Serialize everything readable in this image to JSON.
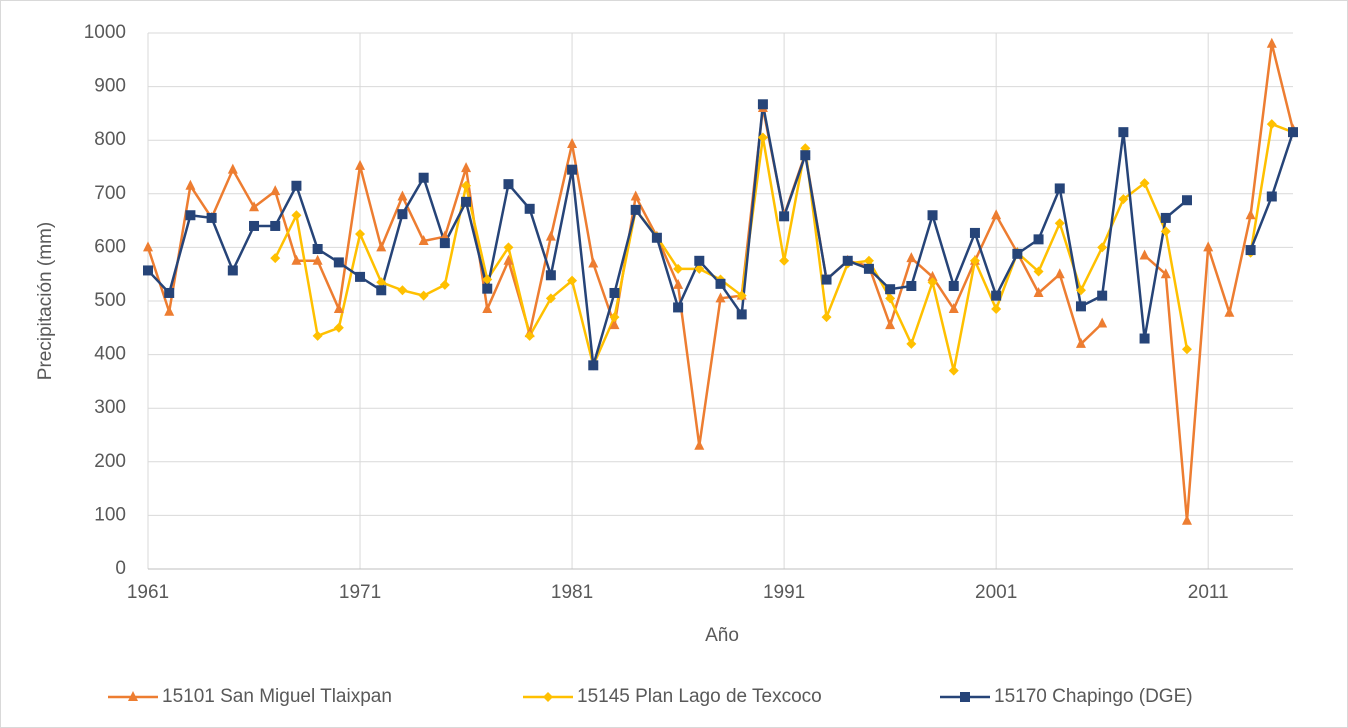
{
  "chart_data": {
    "type": "line",
    "x_label": "Año",
    "y_label": "Precipitación (mm)",
    "x": [
      1961,
      1962,
      1963,
      1964,
      1965,
      1966,
      1967,
      1968,
      1969,
      1970,
      1971,
      1972,
      1973,
      1974,
      1975,
      1976,
      1977,
      1978,
      1979,
      1980,
      1981,
      1982,
      1983,
      1984,
      1985,
      1986,
      1987,
      1988,
      1989,
      1990,
      1991,
      1992,
      1993,
      1994,
      1995,
      1996,
      1997,
      1998,
      1999,
      2000,
      2001,
      2002,
      2003,
      2004,
      2005,
      2006,
      2007,
      2008,
      2009,
      2010,
      2011,
      2012,
      2013,
      2014,
      2015
    ],
    "xlim": [
      1961,
      2015
    ],
    "xticks": [
      1961,
      1971,
      1981,
      1991,
      2001,
      2011
    ],
    "ylim": [
      0,
      1000
    ],
    "yticks": [
      0,
      100,
      200,
      300,
      400,
      500,
      600,
      700,
      800,
      900,
      1000
    ],
    "grid": true,
    "legend": "bottom",
    "series": [
      {
        "name": "15101 San Miguel Tlaixpan",
        "color": "#ed7d31",
        "marker": "triangle",
        "values": [
          600,
          480,
          715,
          655,
          745,
          675,
          705,
          575,
          575,
          485,
          752,
          600,
          695,
          612,
          620,
          748,
          485,
          575,
          440,
          620,
          793,
          570,
          455,
          695,
          620,
          530,
          230,
          505,
          510,
          860,
          660,
          775,
          540,
          575,
          565,
          455,
          580,
          545,
          485,
          575,
          660,
          590,
          515,
          550,
          420,
          458,
          null,
          585,
          550,
          90,
          600,
          478,
          660,
          980,
          820
        ]
      },
      {
        "name": "15145 Plan Lago de Texcoco",
        "color": "#ffc000",
        "marker": "diamond",
        "values": [
          null,
          null,
          null,
          null,
          null,
          null,
          580,
          660,
          435,
          450,
          625,
          535,
          520,
          510,
          530,
          715,
          540,
          600,
          435,
          505,
          538,
          380,
          470,
          670,
          620,
          560,
          560,
          540,
          510,
          805,
          575,
          785,
          470,
          570,
          575,
          505,
          420,
          535,
          370,
          575,
          485,
          590,
          555,
          645,
          520,
          600,
          690,
          720,
          630,
          410,
          null,
          null,
          590,
          830,
          815
        ]
      },
      {
        "name": "15170 Chapingo (DGE)",
        "color": "#264478",
        "marker": "square",
        "values": [
          557,
          515,
          660,
          655,
          557,
          640,
          640,
          715,
          597,
          572,
          545,
          520,
          662,
          730,
          608,
          685,
          523,
          718,
          672,
          548,
          745,
          380,
          515,
          670,
          618,
          488,
          575,
          532,
          475,
          867,
          658,
          772,
          540,
          575,
          560,
          522,
          528,
          660,
          528,
          627,
          510,
          588,
          615,
          710,
          490,
          510,
          815,
          430,
          655,
          688,
          null,
          null,
          595,
          695,
          815
        ]
      }
    ]
  }
}
